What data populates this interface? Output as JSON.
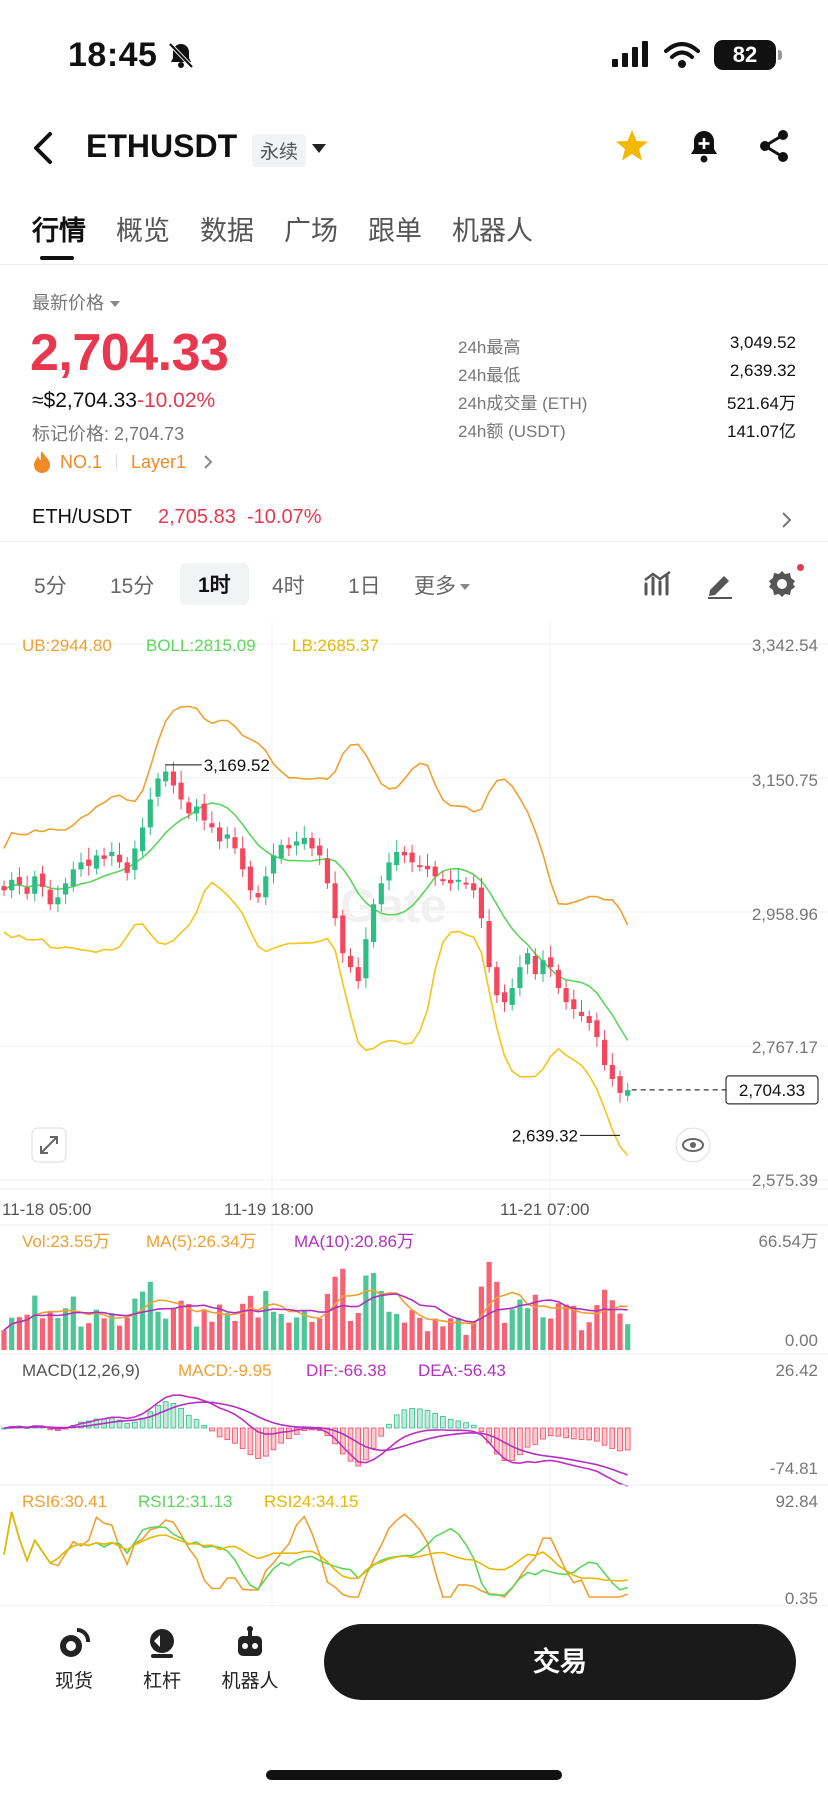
{
  "status_bar": {
    "time": "18:45",
    "battery": "82"
  },
  "header": {
    "symbol": "ETHUSDT",
    "contract_type": "永续"
  },
  "tabs": [
    "行情",
    "概览",
    "数据",
    "广场",
    "跟单",
    "机器人"
  ],
  "price": {
    "label": "最新价格",
    "last": "2,704.33",
    "usd_equiv": "≈$2,704.33",
    "change": "-10.02%",
    "mark_label": "标记价格:",
    "mark": "2,704.73",
    "tag_rank": "NO.1",
    "tag_sector": "Layer1"
  },
  "stats": [
    {
      "label": "24h最高",
      "value": "3,049.52"
    },
    {
      "label": "24h最低",
      "value": "2,639.32"
    },
    {
      "label": "24h成交量 (ETH)",
      "value": "521.64万"
    },
    {
      "label": "24h额 (USDT)",
      "value": "141.07亿"
    }
  ],
  "spot": {
    "pair": "ETH/USDT",
    "price": "2,705.83",
    "change": "-10.07%"
  },
  "intervals": [
    "5分",
    "15分",
    "1时",
    "4时",
    "1日",
    "更多"
  ],
  "active_interval": "1时",
  "chart_data": {
    "type": "candlestick",
    "boll_legend": {
      "ub": "UB:2944.80",
      "boll": "BOLL:2815.09",
      "lb": "LB:2685.37"
    },
    "y_ticks": [
      "3,342.54",
      "3,150.75",
      "2,958.96",
      "2,767.17",
      "2,575.39"
    ],
    "y_range": [
      2575.39,
      3342.54
    ],
    "x_ticks": [
      "11-18 05:00",
      "11-19 18:00",
      "11-21 07:00"
    ],
    "high_marker": "3,169.52",
    "low_marker": "2,639.32",
    "high_value": 3169.52,
    "low_value": 2639.32,
    "current_price_label": "2,704.33",
    "current_price": 2704.33,
    "candles_close": [
      2990,
      3005,
      2998,
      2985,
      3010,
      2995,
      2970,
      2980,
      3000,
      3020,
      3030,
      3025,
      3040,
      3035,
      3045,
      3030,
      3015,
      3050,
      3080,
      3120,
      3150,
      3160,
      3140,
      3120,
      3100,
      3110,
      3090,
      3080,
      3060,
      3070,
      3050,
      3020,
      2990,
      2980,
      3010,
      3040,
      3055,
      3050,
      3060,
      3065,
      3050,
      3040,
      3000,
      2950,
      2900,
      2880,
      2860,
      2920,
      2970,
      3000,
      3030,
      3045,
      3040,
      3030,
      3025,
      3020,
      3010,
      3005,
      3000,
      3005,
      3000,
      2990,
      2950,
      2880,
      2840,
      2830,
      2850,
      2880,
      2900,
      2870,
      2890,
      2880,
      2850,
      2830,
      2820,
      2810,
      2800,
      2780,
      2740,
      2720,
      2700,
      2704
    ],
    "volume_legend": {
      "vol": "Vol:23.55万",
      "ma5": "MA(5):26.34万",
      "ma10": "MA(10):20.86万"
    },
    "volume_ticks": [
      "66.54万",
      "0.00"
    ],
    "macd_legend": {
      "title": "MACD(12,26,9)",
      "macd": "MACD:-9.95",
      "dif": "DIF:-66.38",
      "dea": "DEA:-56.43"
    },
    "macd_ticks": [
      "26.42",
      "-74.81"
    ],
    "rsi_legend": {
      "rsi6": "RSI6:30.41",
      "rsi12": "RSI12:31.13",
      "rsi24": "RSI24:34.15"
    },
    "rsi_ticks": [
      "92.84",
      "0.35"
    ]
  },
  "bottom_nav": [
    "现货",
    "杠杆",
    "机器人"
  ],
  "trade_label": "交易",
  "colors": {
    "up": "#2ebd85",
    "down": "#f6465d",
    "price_red": "#e8384f",
    "ub": "#f0a030",
    "mid": "#5cd65c",
    "lb": "#f5c518"
  }
}
